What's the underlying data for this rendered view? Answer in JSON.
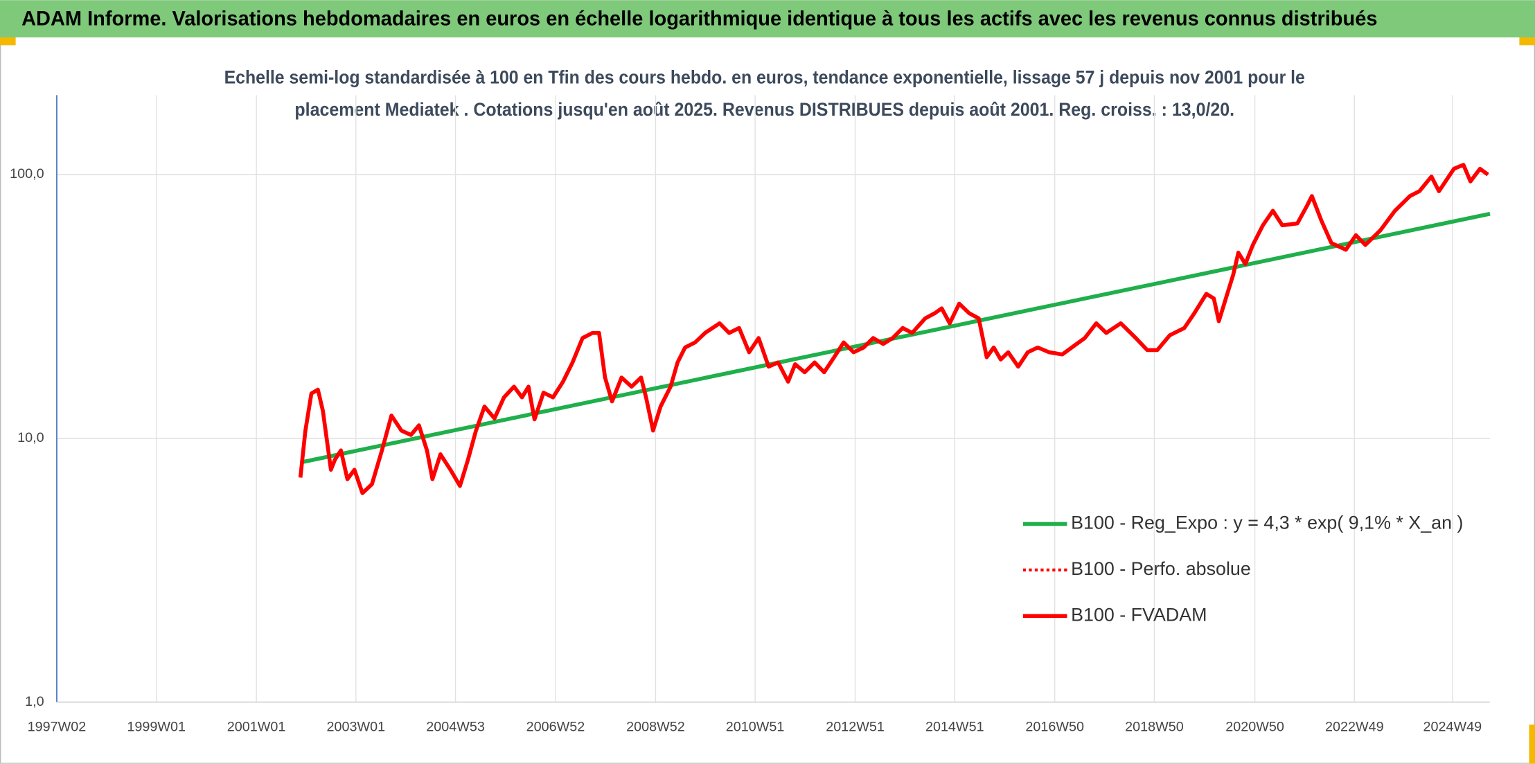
{
  "chart_data": {
    "type": "line",
    "header": "ADAM Informe. Valorisations hebdomadaires en euros en échelle logarithmique identique à tous les actifs avec les revenus connus distribués",
    "title": [
      "Echelle semi-log standardisée à 100 en Tfin des cours hebdo. en euros, tendance exponentielle, lissage 57 j depuis nov 2001 pour le",
      "placement Mediatek . Cotations jusqu'en août 2025. Revenus DISTRIBUES depuis août 2001. Reg. croiss. : 13,0/20."
    ],
    "log_scale": true,
    "grid": true,
    "xlim": [
      1997.02,
      2025.67
    ],
    "xticks": [
      {
        "value": 1997.02,
        "label": "1997W02"
      },
      {
        "value": 1999.01,
        "label": "1999W01"
      },
      {
        "value": 2001.01,
        "label": "2001W01"
      },
      {
        "value": 2003.0,
        "label": "2003W01"
      },
      {
        "value": 2004.99,
        "label": "2004W53"
      },
      {
        "value": 2006.99,
        "label": "2006W52"
      },
      {
        "value": 2008.99,
        "label": "2008W52"
      },
      {
        "value": 2010.98,
        "label": "2010W51"
      },
      {
        "value": 2012.98,
        "label": "2012W51"
      },
      {
        "value": 2014.97,
        "label": "2014W51"
      },
      {
        "value": 2016.97,
        "label": "2016W50"
      },
      {
        "value": 2018.96,
        "label": "2018W50"
      },
      {
        "value": 2020.97,
        "label": "2020W50"
      },
      {
        "value": 2022.96,
        "label": "2022W49"
      },
      {
        "value": 2024.92,
        "label": "2024W49"
      }
    ],
    "ylim": [
      1,
      200
    ],
    "yticks": [
      {
        "value": 1,
        "label": "1,0"
      },
      {
        "value": 10,
        "label": "10,0"
      },
      {
        "value": 100,
        "label": "100,0"
      }
    ],
    "series": [
      {
        "name": "B100 - Reg_Expo : y = 4,3 * exp( 9,1% *  X_an )",
        "color": "#1faf4b",
        "style": "solid",
        "x": [
          2001.89,
          2025.67
        ],
        "values": [
          8.1,
          71
        ]
      },
      {
        "name": "B100 - Perfo. absolue",
        "color": "#ff0000",
        "style": "dotted",
        "x": [],
        "values": []
      },
      {
        "name": "B100 - FVADAM",
        "color": "#ff0000",
        "style": "solid",
        "x": [
          2001.89,
          2001.99,
          2002.11,
          2002.24,
          2002.34,
          2002.5,
          2002.58,
          2002.7,
          2002.83,
          2002.97,
          2003.13,
          2003.32,
          2003.52,
          2003.71,
          2003.91,
          2004.1,
          2004.26,
          2004.42,
          2004.53,
          2004.69,
          2004.89,
          2005.08,
          2005.24,
          2005.4,
          2005.57,
          2005.77,
          2005.96,
          2006.16,
          2006.32,
          2006.45,
          2006.57,
          2006.75,
          2006.94,
          2007.14,
          2007.33,
          2007.53,
          2007.73,
          2007.86,
          2007.98,
          2008.12,
          2008.31,
          2008.51,
          2008.7,
          2008.8,
          2008.94,
          2009.09,
          2009.29,
          2009.43,
          2009.58,
          2009.78,
          2009.98,
          2010.27,
          2010.46,
          2010.66,
          2010.86,
          2011.05,
          2011.25,
          2011.44,
          2011.64,
          2011.78,
          2011.97,
          2012.17,
          2012.36,
          2012.56,
          2012.75,
          2012.95,
          2013.15,
          2013.34,
          2013.54,
          2013.73,
          2013.93,
          2014.12,
          2014.38,
          2014.57,
          2014.71,
          2014.87,
          2015.06,
          2015.26,
          2015.45,
          2015.61,
          2015.75,
          2015.89,
          2016.04,
          2016.24,
          2016.43,
          2016.63,
          2016.86,
          2017.12,
          2017.31,
          2017.57,
          2017.8,
          2018.0,
          2018.29,
          2018.59,
          2018.82,
          2019.02,
          2019.27,
          2019.56,
          2019.76,
          2020.0,
          2020.15,
          2020.25,
          2020.39,
          2020.54,
          2020.64,
          2020.78,
          2020.93,
          2021.13,
          2021.33,
          2021.52,
          2021.82,
          2022.01,
          2022.11,
          2022.3,
          2022.5,
          2022.79,
          2022.99,
          2023.18,
          2023.48,
          2023.77,
          2024.07,
          2024.26,
          2024.5,
          2024.65,
          2024.95,
          2025.14,
          2025.28,
          2025.47,
          2025.63
        ],
        "values": [
          7.1,
          10.7,
          14.8,
          15.3,
          12.7,
          7.6,
          8.3,
          9.0,
          7.0,
          7.6,
          6.2,
          6.7,
          9.0,
          12.2,
          10.7,
          10.3,
          11.2,
          9.0,
          7.0,
          8.7,
          7.6,
          6.6,
          8.3,
          10.7,
          13.2,
          11.9,
          14.3,
          15.7,
          14.3,
          15.7,
          11.8,
          14.9,
          14.3,
          16.4,
          19.4,
          24.0,
          25.1,
          25.1,
          17.0,
          13.8,
          17.0,
          15.7,
          17.0,
          14.3,
          10.7,
          13.2,
          15.7,
          19.4,
          22.1,
          23.1,
          25.1,
          27.3,
          25.1,
          26.2,
          21.2,
          24.0,
          18.7,
          19.4,
          16.4,
          19.1,
          17.8,
          19.4,
          17.8,
          20.3,
          23.1,
          21.2,
          22.1,
          24.0,
          22.8,
          24.0,
          26.2,
          25.1,
          28.5,
          29.8,
          31.1,
          27.3,
          32.4,
          29.8,
          28.5,
          20.3,
          22.1,
          19.9,
          21.2,
          18.7,
          21.2,
          22.1,
          21.2,
          20.8,
          22.1,
          24.0,
          27.3,
          25.1,
          27.3,
          24.0,
          21.6,
          21.6,
          24.6,
          26.2,
          29.8,
          35.3,
          33.9,
          27.8,
          33.9,
          41.9,
          50.6,
          45.8,
          54.1,
          64.2,
          72.9,
          64.2,
          65.3,
          76.0,
          82.9,
          66.9,
          55.0,
          51.9,
          58.9,
          54.1,
          61.5,
          72.9,
          82.9,
          86.5,
          98.3,
          86.5,
          105.2,
          108.9,
          94.2,
          105.2,
          100
        ]
      }
    ]
  }
}
